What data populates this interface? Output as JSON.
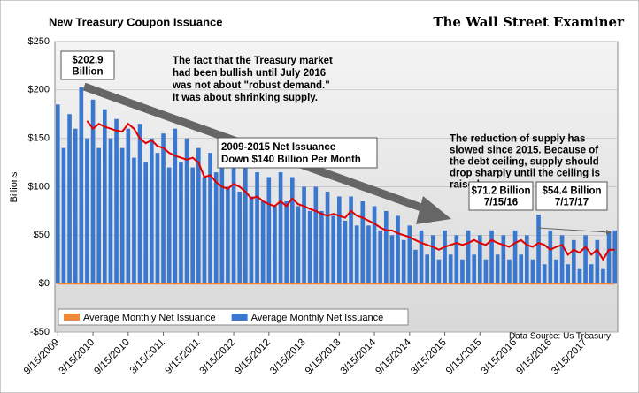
{
  "chart_data": {
    "type": "bar",
    "title": "New Treasury Coupon  Issuance",
    "brand": "The Wall Street Examiner",
    "y_label": "Billions",
    "source": "Data Source: Us Treasury",
    "annotations": [
      [
        "$202.9",
        "Billion"
      ],
      [
        "The fact that the Treasury market",
        "had been bullish until July 2016",
        "was not about \"robust demand.\"",
        "It was about shrinking supply."
      ],
      [
        "2009-2015 Net Issuance",
        "Down $140 Billion Per Month"
      ],
      [
        "The reduction of supply has",
        "slowed since 2015. Because of",
        "the debt ceiling, supply should",
        "drop sharply until the ceiling is",
        "raised."
      ],
      [
        "$71.2 Billion",
        "7/15/16"
      ],
      [
        "$54.4 Billion",
        "7/17/17"
      ]
    ],
    "categories": [
      "9/15/2009",
      null,
      null,
      null,
      null,
      null,
      "3/15/2010",
      null,
      null,
      null,
      null,
      null,
      "9/15/2010",
      null,
      null,
      null,
      null,
      null,
      "3/15/2011",
      null,
      null,
      null,
      null,
      null,
      "9/15/2011",
      null,
      null,
      null,
      null,
      null,
      "3/15/2012",
      null,
      null,
      null,
      null,
      null,
      "9/15/2012",
      null,
      null,
      null,
      null,
      null,
      "3/15/2013",
      null,
      null,
      null,
      null,
      null,
      "9/15/2013",
      null,
      null,
      null,
      null,
      null,
      "3/15/2014",
      null,
      null,
      null,
      null,
      null,
      "9/15/2014",
      null,
      null,
      null,
      null,
      null,
      "3/15/2015",
      null,
      null,
      null,
      null,
      null,
      "9/15/2015",
      null,
      null,
      null,
      null,
      null,
      "3/15/2016",
      null,
      null,
      null,
      null,
      null,
      "9/15/2016",
      null,
      null,
      null,
      null,
      null,
      "3/15/2017",
      null,
      null,
      null,
      null,
      null
    ],
    "series": [
      {
        "name": "Average Monthly Net Issuance",
        "color": "#f0883c",
        "kind": "line",
        "values": [
          0,
          0,
          0,
          0,
          0,
          0,
          0,
          0,
          0,
          0,
          0,
          0,
          0,
          0,
          0,
          0,
          0,
          0,
          0,
          0,
          0,
          0,
          0,
          0,
          0,
          0,
          0,
          0,
          0,
          0,
          0,
          0,
          0,
          0,
          0,
          0,
          0,
          0,
          0,
          0,
          0,
          0,
          0,
          0,
          0,
          0,
          0,
          0,
          0,
          0,
          0,
          0,
          0,
          0,
          0,
          0,
          0,
          0,
          0,
          0,
          0,
          0,
          0,
          0,
          0,
          0,
          0,
          0,
          0,
          0,
          0,
          0,
          0,
          0,
          0,
          0,
          0,
          0,
          0,
          0,
          0,
          0,
          0,
          0,
          0,
          0,
          0,
          0,
          0,
          0,
          0,
          0,
          0,
          0,
          0,
          0
        ]
      },
      {
        "name": "Average Monthly Net Issuance",
        "color": "#3a78d0",
        "kind": "bar",
        "values": [
          185,
          140,
          175,
          160,
          202.9,
          150,
          190,
          140,
          180,
          150,
          170,
          140,
          160,
          130,
          165,
          125,
          150,
          135,
          155,
          120,
          160,
          125,
          150,
          120,
          140,
          110,
          135,
          115,
          130,
          100,
          125,
          95,
          120,
          90,
          115,
          85,
          110,
          80,
          115,
          85,
          110,
          80,
          100,
          75,
          100,
          75,
          95,
          70,
          90,
          65,
          90,
          60,
          85,
          60,
          80,
          55,
          75,
          50,
          70,
          45,
          60,
          35,
          55,
          30,
          50,
          25,
          55,
          30,
          50,
          25,
          55,
          30,
          50,
          25,
          55,
          30,
          50,
          25,
          55,
          30,
          50,
          25,
          71.2,
          20,
          55,
          25,
          50,
          20,
          45,
          15,
          50,
          20,
          45,
          15,
          54.4,
          55
        ]
      },
      {
        "color": "#e00000",
        "kind": "line",
        "values": [
          null,
          null,
          null,
          null,
          null,
          168,
          160,
          165,
          162,
          160,
          158,
          157,
          165,
          160,
          150,
          145,
          148,
          142,
          140,
          135,
          132,
          130,
          128,
          130,
          125,
          110,
          112,
          105,
          100,
          98,
          103,
          100,
          95,
          88,
          90,
          85,
          82,
          80,
          85,
          80,
          88,
          82,
          80,
          77,
          75,
          72,
          70,
          72,
          70,
          68,
          75,
          70,
          68,
          65,
          62,
          58,
          55,
          55,
          52,
          50,
          48,
          45,
          42,
          40,
          38,
          35,
          38,
          40,
          42,
          40,
          42,
          45,
          42,
          40,
          45,
          42,
          40,
          38,
          42,
          45,
          40,
          38,
          42,
          40,
          35,
          38,
          40,
          30,
          35,
          32,
          38,
          30,
          35,
          25,
          35,
          35
        ]
      }
    ],
    "ylim": [
      -50,
      250
    ],
    "yticks": [
      {
        "value": -50,
        "label": "-$50"
      },
      {
        "value": 0,
        "label": "$0"
      },
      {
        "value": 50,
        "label": "$50"
      },
      {
        "value": 100,
        "label": "$100"
      },
      {
        "value": 150,
        "label": "$150"
      },
      {
        "value": 200,
        "label": "$200"
      },
      {
        "value": 250,
        "label": "$250"
      }
    ],
    "grid": true
  }
}
